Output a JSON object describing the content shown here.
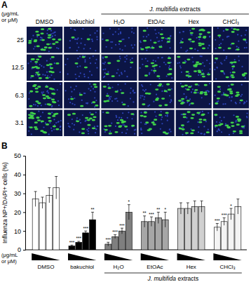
{
  "panel_a": {
    "letter": "A",
    "unit_label": "(μg/mL or μM)",
    "row_labels": [
      25,
      12.5,
      6.3,
      3.1
    ],
    "column_labels": [
      "DMSO",
      "bakuchiol",
      "H₂O",
      "EtOAc",
      "Hex",
      "CHCl₃"
    ],
    "group_label": "J. multifida extracts"
  },
  "chart_data": {
    "type": "bar",
    "panel_label": "B",
    "y_label": "Influenza NP+/DAPI+ cells (%)",
    "x_label": "(μg/mL or μM)",
    "group_label": "J. multifida extracts",
    "ylim": [
      0,
      50
    ],
    "yticks": [
      0,
      10,
      20,
      30,
      40,
      50
    ],
    "grid": false,
    "groups": [
      {
        "name": "DMSO",
        "color": "#ffffff",
        "values": [
          27,
          25,
          29,
          33
        ],
        "errors": [
          4,
          3,
          4,
          6
        ],
        "stars": [
          null,
          null,
          null,
          null
        ]
      },
      {
        "name": "bakuchiol",
        "color": "#000000",
        "values": [
          2,
          4,
          9,
          16
        ],
        "errors": [
          0.5,
          0.5,
          1,
          4
        ],
        "stars": [
          "***",
          "***",
          "***",
          "**"
        ]
      },
      {
        "name": "H₂O",
        "color": "#7f7f7f",
        "values": [
          3,
          7,
          10,
          20
        ],
        "errors": [
          1,
          1,
          1.5,
          4
        ],
        "stars": [
          "***",
          "***",
          "***",
          "*"
        ]
      },
      {
        "name": "EtOAc",
        "color": "#a6a6a6",
        "values": [
          15,
          15,
          17,
          16
        ],
        "errors": [
          3,
          2.5,
          3,
          4
        ],
        "stars": [
          "**",
          "***",
          "**",
          "*"
        ]
      },
      {
        "name": "Hex",
        "color": "#d0d0d0",
        "values": [
          22,
          22,
          23,
          23
        ],
        "errors": [
          3,
          3,
          3,
          3
        ],
        "stars": [
          null,
          null,
          null,
          null
        ]
      },
      {
        "name": "CHCl₃",
        "color": "#f4f4f4",
        "values": [
          12,
          15,
          19,
          23
        ],
        "errors": [
          2,
          2,
          3,
          4
        ],
        "stars": [
          "***",
          "***",
          "*",
          null
        ]
      }
    ]
  }
}
